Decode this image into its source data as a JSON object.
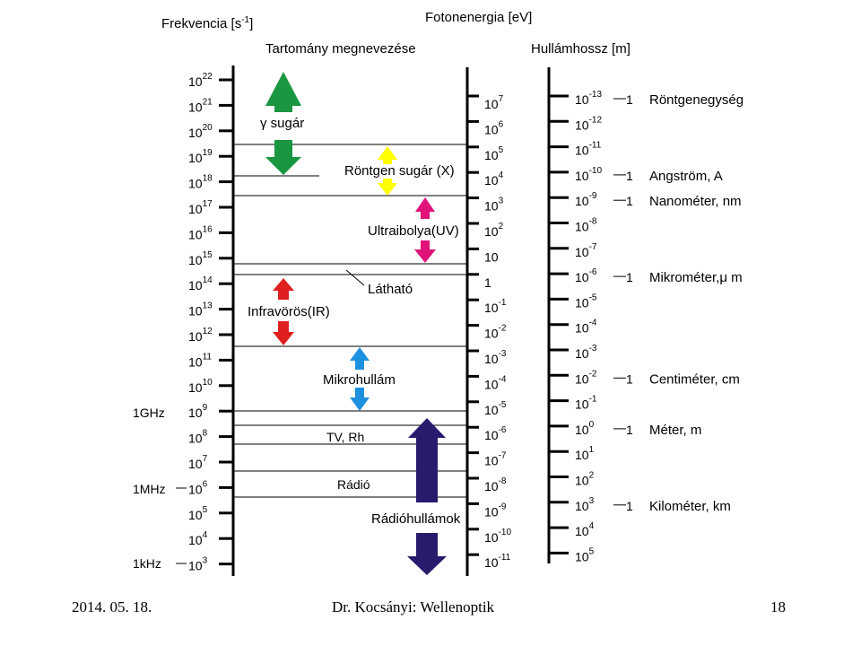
{
  "headings": {
    "frequency": "Frekvencia [s",
    "frequency_sup": "-1",
    "frequency_end": "]",
    "photon": "Fotonenergia [eV]",
    "range": "Tartomány megnevezése",
    "wavelength": "Hullámhossz [m]"
  },
  "freq_exponents": [
    "22",
    "21",
    "20",
    "19",
    "18",
    "17",
    "16",
    "15",
    "14",
    "13",
    "12",
    "11",
    "10",
    "9",
    "8",
    "7",
    "6",
    "5",
    "4",
    "3"
  ],
  "freq_side_labels": {
    "ghz": "1GHz",
    "mhz": "1MHz",
    "khz": "1kHz"
  },
  "energy_labels": [
    {
      "base": "10",
      "exp": "7"
    },
    {
      "base": "10",
      "exp": "6"
    },
    {
      "base": "10",
      "exp": "5"
    },
    {
      "base": "10",
      "exp": "4"
    },
    {
      "base": "10",
      "exp": "3"
    },
    {
      "base": "10",
      "exp": "2"
    },
    {
      "base": "10",
      "exp": ""
    },
    {
      "base": "1",
      "exp": ""
    },
    {
      "base": "10",
      "exp": "-1"
    },
    {
      "base": "10",
      "exp": "-2"
    },
    {
      "base": "10",
      "exp": "-3"
    },
    {
      "base": "10",
      "exp": "-4"
    },
    {
      "base": "10",
      "exp": "-5"
    },
    {
      "base": "10",
      "exp": "-6"
    },
    {
      "base": "10",
      "exp": "-7"
    },
    {
      "base": "10",
      "exp": "-8"
    },
    {
      "base": "10",
      "exp": "-9"
    },
    {
      "base": "10",
      "exp": "-10"
    },
    {
      "base": "10",
      "exp": "-11"
    }
  ],
  "wavelength_exponents": [
    "-13",
    "-12",
    "-11",
    "-10",
    "-9",
    "-8",
    "-7",
    "-6",
    "-5",
    "-4",
    "-3",
    "-2",
    "-1",
    "0",
    "1",
    "2",
    "3",
    "4",
    "5"
  ],
  "wavelength_units": [
    {
      "exp": "-13",
      "name": "Röntgenegység"
    },
    {
      "exp": "-10",
      "name": "Angström, A"
    },
    {
      "exp": "-9",
      "name": "Nanométer, nm"
    },
    {
      "exp": "-6",
      "name": "Mikrométer,μ m"
    },
    {
      "exp": "-2",
      "name": "Centiméter, cm"
    },
    {
      "exp": "0",
      "name": "Méter, m"
    },
    {
      "exp": "3",
      "name": "Kilométer, km"
    }
  ],
  "unit_one": "1",
  "regions": {
    "gamma": "γ sugár",
    "xray": "Röntgen sugár (X)",
    "uv": "Ultraibolya(UV)",
    "visible": "Látható",
    "ir": "Infravörös(IR)",
    "micro": "Mikrohullám",
    "tv": "TV, Rh",
    "radio": "Rádió",
    "radiowaves": "Rádióhullámok"
  },
  "colors": {
    "gamma": "#1a9640",
    "xray": "#ffff00",
    "uv": "#e0137a",
    "ir": "#e02020",
    "micro": "#1e90e0",
    "radiowaves": "#2a1a6e"
  },
  "footer": {
    "date": "2014. 05. 18.",
    "author": "Dr. Kocsányi: Wellenoptik",
    "page": "18"
  }
}
